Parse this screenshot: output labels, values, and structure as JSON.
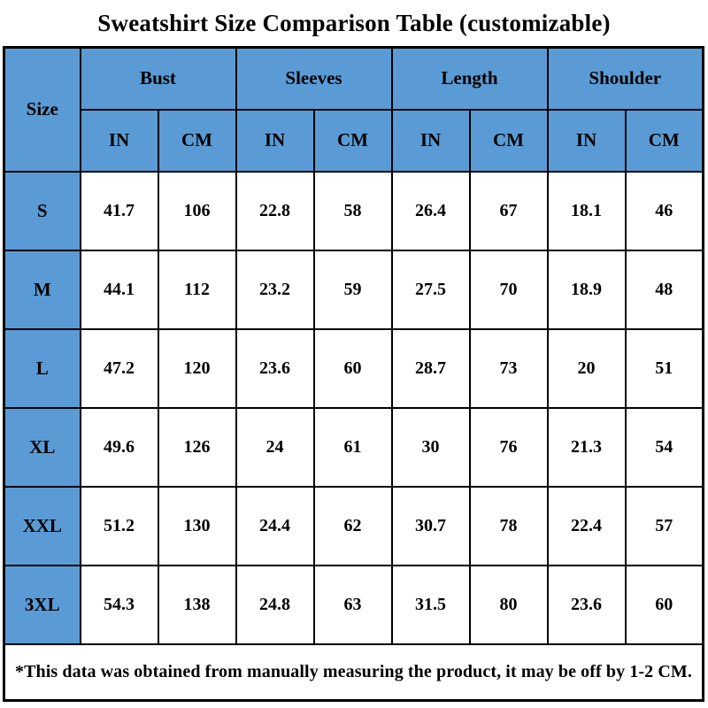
{
  "title": "Sweatshirt Size Comparison Table (customizable)",
  "colors": {
    "header_blue": "#5b9bd5",
    "border_black": "#000000",
    "cell_white": "#ffffff",
    "text_black": "#000000"
  },
  "table": {
    "size_header": "Size",
    "groups": [
      {
        "label": "Bust"
      },
      {
        "label": "Sleeves"
      },
      {
        "label": "Length"
      },
      {
        "label": "Shoulder"
      }
    ],
    "unit_headers": [
      "IN",
      "CM",
      "IN",
      "CM",
      "IN",
      "CM",
      "IN",
      "CM"
    ],
    "rows": [
      {
        "size": "S",
        "values": [
          "41.7",
          "106",
          "22.8",
          "58",
          "26.4",
          "67",
          "18.1",
          "46"
        ]
      },
      {
        "size": "M",
        "values": [
          "44.1",
          "112",
          "23.2",
          "59",
          "27.5",
          "70",
          "18.9",
          "48"
        ]
      },
      {
        "size": "L",
        "values": [
          "47.2",
          "120",
          "23.6",
          "60",
          "28.7",
          "73",
          "20",
          "51"
        ]
      },
      {
        "size": "XL",
        "values": [
          "49.6",
          "126",
          "24",
          "61",
          "30",
          "76",
          "21.3",
          "54"
        ]
      },
      {
        "size": "XXL",
        "values": [
          "51.2",
          "130",
          "24.4",
          "62",
          "30.7",
          "78",
          "22.4",
          "57"
        ]
      },
      {
        "size": "3XL",
        "values": [
          "54.3",
          "138",
          "24.8",
          "63",
          "31.5",
          "80",
          "23.6",
          "60"
        ]
      }
    ],
    "footnote": "*This data was obtained from manually measuring the product, it may be off by 1-2 CM."
  },
  "chart_data": {
    "type": "table",
    "title": "Sweatshirt Size Comparison Table (customizable)",
    "column_groups": [
      "Bust",
      "Sleeves",
      "Length",
      "Shoulder"
    ],
    "columns": [
      "Size",
      "Bust IN",
      "Bust CM",
      "Sleeves IN",
      "Sleeves CM",
      "Length IN",
      "Length CM",
      "Shoulder IN",
      "Shoulder CM"
    ],
    "rows": [
      [
        "S",
        41.7,
        106,
        22.8,
        58,
        26.4,
        67,
        18.1,
        46
      ],
      [
        "M",
        44.1,
        112,
        23.2,
        59,
        27.5,
        70,
        18.9,
        48
      ],
      [
        "L",
        47.2,
        120,
        23.6,
        60,
        28.7,
        73,
        20,
        51
      ],
      [
        "XL",
        49.6,
        126,
        24,
        61,
        30,
        76,
        21.3,
        54
      ],
      [
        "XXL",
        51.2,
        130,
        24.4,
        62,
        30.7,
        78,
        22.4,
        57
      ],
      [
        "3XL",
        54.3,
        138,
        24.8,
        63,
        31.5,
        80,
        23.6,
        60
      ]
    ],
    "footnote": "*This data was obtained from manually measuring the product, it may be off by 1-2 CM."
  }
}
